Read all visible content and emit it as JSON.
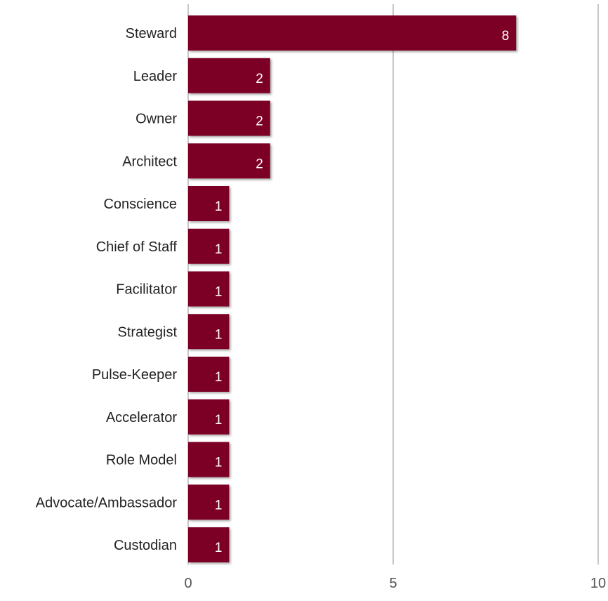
{
  "chart_data": {
    "type": "bar",
    "orientation": "horizontal",
    "categories": [
      "Steward",
      "Leader",
      "Owner",
      "Architect",
      "Conscience",
      "Chief of Staff",
      "Facilitator",
      "Strategist",
      "Pulse-Keeper",
      "Accelerator",
      "Role Model",
      "Advocate/Ambassador",
      "Custodian"
    ],
    "values": [
      8,
      2,
      2,
      2,
      1,
      1,
      1,
      1,
      1,
      1,
      1,
      1,
      1
    ],
    "xlim": [
      0,
      10
    ],
    "xticks": [
      0,
      5,
      10
    ],
    "xtick_labels": [
      "0",
      "5",
      "10"
    ],
    "grid": true,
    "data_labels": true,
    "bar_color": "#7b0026",
    "title": "",
    "xlabel": "",
    "ylabel": ""
  }
}
